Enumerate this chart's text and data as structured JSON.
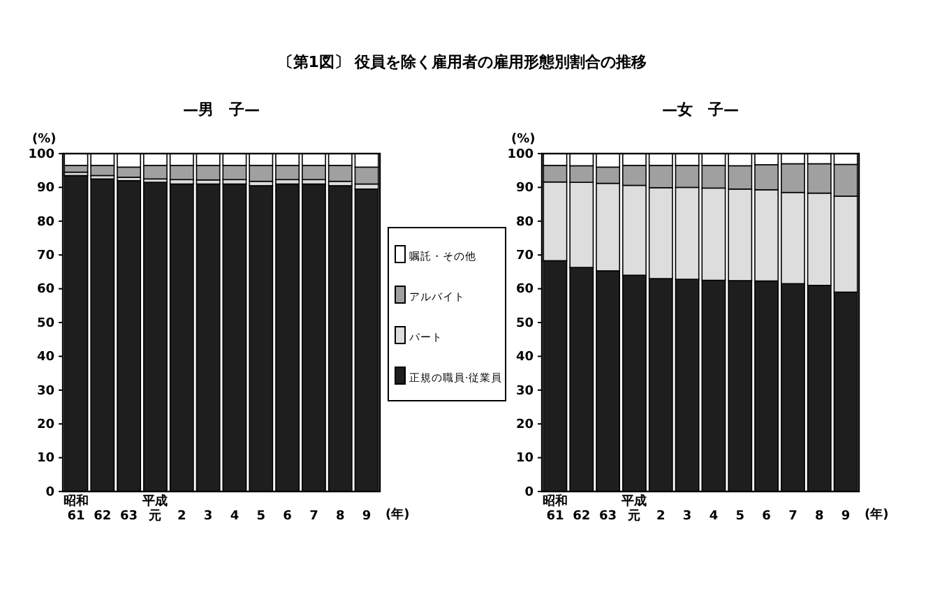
{
  "chart_data": [
    {
      "type": "bar",
      "stacked": true,
      "title": "〔第1図〕 役員を除く雇用者の雇用形態別割合の推移",
      "subtitle": "—男　子—",
      "ylabel": "(%)",
      "xlabel": "(年)",
      "legend": "right",
      "grid": false,
      "categories": [
        "昭和\n61",
        "62",
        "63",
        "平成元",
        "2",
        "3",
        "4",
        "5",
        "6",
        "7",
        "8",
        "9"
      ],
      "ylim": [
        0,
        100
      ],
      "yticks": [
        0,
        10,
        20,
        30,
        40,
        50,
        60,
        70,
        80,
        90,
        100
      ],
      "series": [
        {
          "name": "正規の職員·従業員",
          "color": "#1e1e1e",
          "values": [
            93.5,
            92.5,
            92,
            91.5,
            91,
            91,
            91,
            90.5,
            91,
            91,
            90.5,
            89.5
          ]
        },
        {
          "name": "パート",
          "color": "#dddddd",
          "values": [
            1.0,
            1.0,
            1.0,
            1.0,
            1.3,
            1.2,
            1.3,
            1.3,
            1.3,
            1.3,
            1.3,
            1.5
          ]
        },
        {
          "name": "アルバイト",
          "color": "#a0a0a0",
          "values": [
            2.0,
            3.0,
            3.0,
            4.0,
            4.2,
            4.3,
            4.2,
            4.7,
            4.2,
            4.2,
            4.7,
            5.0
          ]
        },
        {
          "name": "嘱託・その他",
          "color": "#ffffff",
          "values": [
            3.5,
            3.5,
            4.0,
            3.5,
            3.5,
            3.5,
            3.5,
            3.5,
            3.5,
            3.5,
            3.5,
            4.0
          ]
        }
      ]
    },
    {
      "type": "bar",
      "stacked": true,
      "subtitle": "—女　子—",
      "ylabel": "(%)",
      "xlabel": "(年)",
      "grid": false,
      "categories": [
        "昭和\n61",
        "62",
        "63",
        "平成元",
        "2",
        "3",
        "4",
        "5",
        "6",
        "7",
        "8",
        "9"
      ],
      "ylim": [
        0,
        100
      ],
      "yticks": [
        0,
        10,
        20,
        30,
        40,
        50,
        60,
        70,
        80,
        90,
        100
      ],
      "series": [
        {
          "color": "#1e1e1e",
          "values": [
            68.3,
            66.3,
            65.3,
            64.0,
            63.0,
            62.8,
            62.5,
            62.4,
            62.3,
            61.5,
            61.0,
            59.0
          ]
        },
        {
          "color": "#dddddd",
          "values": [
            23.3,
            25.2,
            25.9,
            26.6,
            26.9,
            27.2,
            27.3,
            27.1,
            27.0,
            27.0,
            27.3,
            28.4
          ]
        },
        {
          "color": "#a0a0a0",
          "values": [
            4.9,
            4.9,
            4.8,
            5.9,
            6.6,
            6.5,
            6.7,
            6.9,
            7.4,
            8.5,
            8.7,
            9.4
          ]
        },
        {
          "color": "#ffffff",
          "values": [
            3.5,
            3.6,
            4.0,
            3.5,
            3.5,
            3.5,
            3.5,
            3.6,
            3.3,
            3.0,
            3.0,
            3.2
          ]
        }
      ]
    }
  ]
}
